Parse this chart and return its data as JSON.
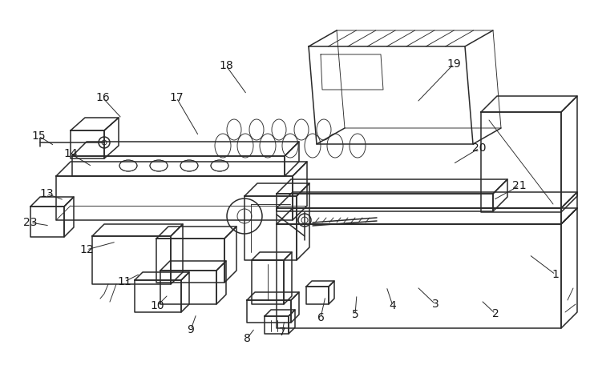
{
  "bg_color": "#ffffff",
  "line_color": "#2a2a2a",
  "label_color": "#1a1a1a",
  "lw": 1.1,
  "tlw": 0.65,
  "figsize": [
    7.36,
    4.61
  ],
  "dpi": 100,
  "label_positions": [
    [
      "1",
      693,
      343
    ],
    [
      "2",
      618,
      392
    ],
    [
      "3",
      543,
      380
    ],
    [
      "4",
      490,
      382
    ],
    [
      "5",
      443,
      393
    ],
    [
      "6",
      400,
      397
    ],
    [
      "7",
      352,
      415
    ],
    [
      "8",
      308,
      423
    ],
    [
      "9",
      238,
      412
    ],
    [
      "10",
      196,
      382
    ],
    [
      "11",
      155,
      352
    ],
    [
      "12",
      108,
      312
    ],
    [
      "13",
      58,
      242
    ],
    [
      "14",
      88,
      192
    ],
    [
      "15",
      48,
      170
    ],
    [
      "16",
      128,
      122
    ],
    [
      "17",
      220,
      122
    ],
    [
      "18",
      282,
      82
    ],
    [
      "19",
      566,
      80
    ],
    [
      "20",
      598,
      185
    ],
    [
      "21",
      648,
      232
    ],
    [
      "23",
      38,
      278
    ]
  ],
  "leader_targets": [
    [
      "1",
      660,
      318
    ],
    [
      "2",
      600,
      375
    ],
    [
      "3",
      520,
      358
    ],
    [
      "4",
      482,
      358
    ],
    [
      "5",
      445,
      368
    ],
    [
      "6",
      406,
      370
    ],
    [
      "7",
      355,
      400
    ],
    [
      "8",
      318,
      410
    ],
    [
      "9",
      245,
      392
    ],
    [
      "10",
      210,
      368
    ],
    [
      "11",
      175,
      342
    ],
    [
      "12",
      145,
      302
    ],
    [
      "13",
      80,
      250
    ],
    [
      "14",
      115,
      208
    ],
    [
      "15",
      68,
      182
    ],
    [
      "16",
      152,
      148
    ],
    [
      "17",
      248,
      170
    ],
    [
      "18",
      308,
      118
    ],
    [
      "19",
      520,
      128
    ],
    [
      "20",
      565,
      205
    ],
    [
      "21",
      615,
      250
    ],
    [
      "23",
      62,
      282
    ]
  ]
}
